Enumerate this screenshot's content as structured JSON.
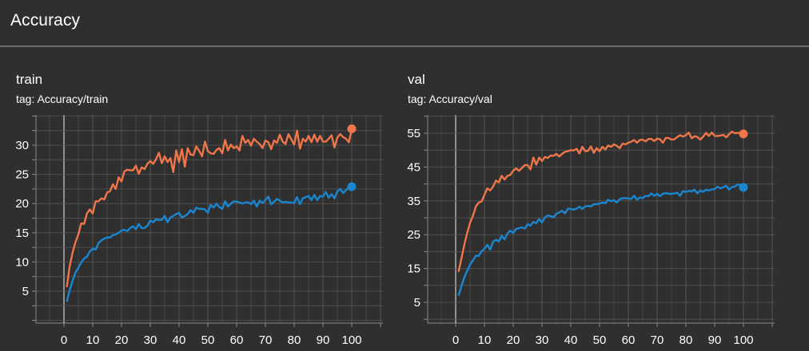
{
  "section": {
    "title": "Accuracy"
  },
  "colors": {
    "series_run_a": "#f0764a",
    "series_run_b": "#1a86d0",
    "grid": "#5a5a5a",
    "axis": "#8a8a8a",
    "background": "#2f2f2f"
  },
  "chart_data": [
    {
      "type": "line",
      "title": "train",
      "subtitle": "tag: Accuracy/train",
      "xlabel": "",
      "ylabel": "",
      "xlim": [
        -10,
        110
      ],
      "ylim": [
        0,
        35
      ],
      "xticks": [
        0,
        10,
        20,
        30,
        40,
        50,
        60,
        70,
        80,
        90,
        100
      ],
      "yticks": [
        5,
        10,
        15,
        20,
        25,
        30
      ],
      "grid": true,
      "series": [
        {
          "color": "#f0764a",
          "x": [
            1,
            2,
            3,
            4,
            5,
            6,
            7,
            8,
            9,
            10,
            11,
            12,
            13,
            14,
            15,
            16,
            17,
            18,
            19,
            20,
            21,
            22,
            23,
            24,
            25,
            26,
            27,
            28,
            29,
            30,
            31,
            32,
            33,
            34,
            35,
            36,
            37,
            38,
            39,
            40,
            41,
            42,
            43,
            44,
            45,
            46,
            47,
            48,
            49,
            50,
            51,
            52,
            53,
            54,
            55,
            56,
            57,
            58,
            59,
            60,
            61,
            62,
            63,
            64,
            65,
            66,
            67,
            68,
            69,
            70,
            71,
            72,
            73,
            74,
            75,
            76,
            77,
            78,
            79,
            80,
            81,
            82,
            83,
            84,
            85,
            86,
            87,
            88,
            89,
            90,
            91,
            92,
            93,
            94,
            95,
            96,
            97,
            98,
            99,
            100
          ],
          "y": [
            5.7,
            9.3,
            11.6,
            13.4,
            14.7,
            16.6,
            16.5,
            18.3,
            19,
            18.3,
            20.4,
            20.4,
            20.9,
            20.7,
            21.9,
            22.1,
            23.3,
            22.5,
            24.5,
            23.8,
            25.5,
            25.8,
            25.7,
            25.7,
            26.5,
            25.1,
            26.2,
            25.9,
            26.8,
            27.3,
            26.8,
            27.6,
            28.7,
            26.9,
            28.1,
            27.1,
            27.8,
            25.4,
            29.1,
            27.1,
            29.3,
            26.3,
            29.5,
            28.4,
            28.3,
            29.8,
            29,
            28.1,
            30.6,
            29,
            28.6,
            28.5,
            29.2,
            29.5,
            28.6,
            30.9,
            29.1,
            30.1,
            29.5,
            29.8,
            29.1,
            31.6,
            30.4,
            30.9,
            29.9,
            31.1,
            30.6,
            30.2,
            29.5,
            30.8,
            30.5,
            29.3,
            30.8,
            30.4,
            31.8,
            30.6,
            30.2,
            31.9,
            31,
            30.1,
            32.5,
            29.4,
            31.1,
            30.6,
            31.6,
            30.5,
            31.8,
            30.6,
            31.6,
            30.6,
            30.6,
            31.1,
            31.7,
            29.6,
            31.3,
            31.9,
            31.4,
            31.1,
            30.5,
            32.8
          ]
        },
        {
          "color": "#1a86d0",
          "x": [
            1,
            2,
            3,
            4,
            5,
            6,
            7,
            8,
            9,
            10,
            11,
            12,
            13,
            14,
            15,
            16,
            17,
            18,
            19,
            20,
            21,
            22,
            23,
            24,
            25,
            26,
            27,
            28,
            29,
            30,
            31,
            32,
            33,
            34,
            35,
            36,
            37,
            38,
            39,
            40,
            41,
            42,
            43,
            44,
            45,
            46,
            47,
            48,
            49,
            50,
            51,
            52,
            53,
            54,
            55,
            56,
            57,
            58,
            59,
            60,
            61,
            62,
            63,
            64,
            65,
            66,
            67,
            68,
            69,
            70,
            71,
            72,
            73,
            74,
            75,
            76,
            77,
            78,
            79,
            80,
            81,
            82,
            83,
            84,
            85,
            86,
            87,
            88,
            89,
            90,
            91,
            92,
            93,
            94,
            95,
            96,
            97,
            98,
            99,
            100
          ],
          "y": [
            3.2,
            5.2,
            6.8,
            8.2,
            9,
            9.9,
            10.6,
            10.9,
            11.8,
            12.3,
            12.1,
            13.2,
            13.7,
            14,
            14.2,
            14.2,
            14.6,
            14.7,
            15,
            15.4,
            15.5,
            15.3,
            15.8,
            16.1,
            15.6,
            16.5,
            15.8,
            15.8,
            16.2,
            17.1,
            16.8,
            17.3,
            17.2,
            17.2,
            17.9,
            16.8,
            17.6,
            17.9,
            18.2,
            18.4,
            17.6,
            17.9,
            18.2,
            18.9,
            18.4,
            19.3,
            19.1,
            19.1,
            19,
            18.4,
            19.8,
            19.3,
            20,
            19.4,
            19.1,
            20.4,
            19.5,
            20,
            20.4,
            20.3,
            20.2,
            20,
            20.2,
            20.2,
            19.9,
            20.5,
            19.5,
            20.5,
            20.1,
            20.6,
            21.2,
            19.9,
            20.3,
            20.8,
            20.5,
            20.2,
            20.3,
            20.2,
            20.2,
            20.1,
            21.1,
            19.9,
            20.9,
            21.1,
            21.3,
            20.6,
            21.5,
            20.6,
            21.3,
            21.2,
            22,
            21,
            21.6,
            20.9,
            22.1,
            22.5,
            21.8,
            22.3,
            22.8,
            22.9
          ]
        }
      ]
    },
    {
      "type": "line",
      "title": "val",
      "subtitle": "tag: Accuracy/val",
      "xlabel": "",
      "ylabel": "",
      "xlim": [
        -10,
        110
      ],
      "ylim": [
        0,
        60
      ],
      "xticks": [
        0,
        10,
        20,
        30,
        40,
        50,
        60,
        70,
        80,
        90,
        100
      ],
      "yticks": [
        5,
        15,
        25,
        35,
        45,
        55
      ],
      "grid": true,
      "series": [
        {
          "color": "#f0764a",
          "x": [
            1,
            2,
            3,
            4,
            5,
            6,
            7,
            8,
            9,
            10,
            11,
            12,
            13,
            14,
            15,
            16,
            17,
            18,
            19,
            20,
            21,
            22,
            23,
            24,
            25,
            26,
            27,
            28,
            29,
            30,
            31,
            32,
            33,
            34,
            35,
            36,
            37,
            38,
            39,
            40,
            41,
            42,
            43,
            44,
            45,
            46,
            47,
            48,
            49,
            50,
            51,
            52,
            53,
            54,
            55,
            56,
            57,
            58,
            59,
            60,
            61,
            62,
            63,
            64,
            65,
            66,
            67,
            68,
            69,
            70,
            71,
            72,
            73,
            74,
            75,
            76,
            77,
            78,
            79,
            80,
            81,
            82,
            83,
            84,
            85,
            86,
            87,
            88,
            89,
            90,
            91,
            92,
            93,
            94,
            95,
            96,
            97,
            98,
            99,
            100
          ],
          "y": [
            14,
            17.9,
            22,
            25.5,
            28.5,
            30.6,
            33.3,
            34.5,
            34.8,
            36.8,
            38.7,
            38.1,
            39.2,
            41,
            40.5,
            42.4,
            41.3,
            42.4,
            42.7,
            43.9,
            44.6,
            43.9,
            44.7,
            45.6,
            45.6,
            44.3,
            47.8,
            45.7,
            47.8,
            46.8,
            48,
            47.7,
            48.4,
            48.3,
            48.9,
            48.1,
            48.9,
            49.5,
            49.7,
            50,
            49.9,
            50.4,
            49,
            51,
            49.7,
            49.8,
            51.1,
            49.2,
            50.6,
            49.7,
            51,
            50.2,
            51.4,
            51,
            51.7,
            51.3,
            50.6,
            51.9,
            51.7,
            52.2,
            52.5,
            53,
            52.2,
            53,
            53.1,
            52.6,
            53.3,
            53.3,
            52.7,
            53.4,
            53.2,
            52.2,
            53.6,
            53.6,
            53.1,
            53.2,
            53.9,
            54.4,
            54,
            54.4,
            55.2,
            53.5,
            54.1,
            53.9,
            53.1,
            54,
            55.1,
            54.2,
            55.2,
            54.2,
            54.2,
            54.3,
            54.5,
            53.8,
            54.7,
            55.5,
            55,
            55.1,
            55,
            54.8
          ]
        },
        {
          "color": "#1a86d0",
          "x": [
            1,
            2,
            3,
            4,
            5,
            6,
            7,
            8,
            9,
            10,
            11,
            12,
            13,
            14,
            15,
            16,
            17,
            18,
            19,
            20,
            21,
            22,
            23,
            24,
            25,
            26,
            27,
            28,
            29,
            30,
            31,
            32,
            33,
            34,
            35,
            36,
            37,
            38,
            39,
            40,
            41,
            42,
            43,
            44,
            45,
            46,
            47,
            48,
            49,
            50,
            51,
            52,
            53,
            54,
            55,
            56,
            57,
            58,
            59,
            60,
            61,
            62,
            63,
            64,
            65,
            66,
            67,
            68,
            69,
            70,
            71,
            72,
            73,
            74,
            75,
            76,
            77,
            78,
            79,
            80,
            81,
            82,
            83,
            84,
            85,
            86,
            87,
            88,
            89,
            90,
            91,
            92,
            93,
            94,
            95,
            96,
            97,
            98,
            99,
            100
          ],
          "y": [
            7,
            9.8,
            12.4,
            14.3,
            16.1,
            17.4,
            18.8,
            18.7,
            20.1,
            20.8,
            22,
            20.6,
            22.9,
            23.5,
            23,
            24.7,
            23.6,
            25.3,
            26.2,
            25.5,
            26.7,
            26.9,
            27.2,
            26.8,
            28.1,
            27.7,
            28.8,
            28.4,
            29.6,
            28.6,
            30.1,
            30.7,
            30.5,
            30.2,
            31.2,
            31.6,
            32.1,
            31.3,
            32.7,
            32.6,
            32.4,
            32.7,
            33.3,
            32.6,
            33.4,
            33.5,
            33.4,
            34,
            34,
            34.2,
            34.5,
            34.3,
            35.3,
            34.9,
            35.2,
            34.5,
            35.5,
            35.8,
            35.8,
            35.7,
            35.6,
            36.5,
            35.4,
            36,
            35.8,
            36.5,
            36.4,
            37.2,
            36.5,
            37.1,
            36.4,
            37.1,
            37.3,
            37.1,
            37.1,
            37.2,
            37.4,
            36.5,
            37.9,
            37.6,
            38,
            37.8,
            38.3,
            37.2,
            38.1,
            37.7,
            38.3,
            38.1,
            38.4,
            38.5,
            39.2,
            38.7,
            39,
            39.5,
            38.3,
            39.1,
            39.2,
            39.9,
            39.6,
            39
          ]
        }
      ]
    }
  ]
}
